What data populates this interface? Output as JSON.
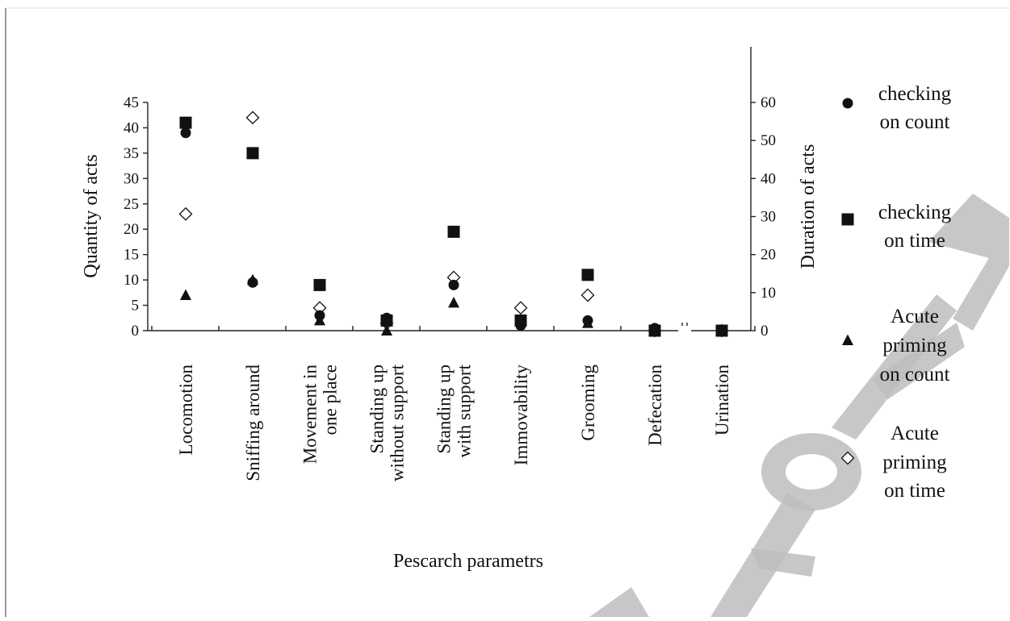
{
  "chart_data": {
    "type": "scatter",
    "xlabel": "Pescarch parametrs",
    "ylabel_left": "Quantity of acts",
    "ylabel_right": "Duration of acts",
    "ylim_left": [
      0,
      45
    ],
    "ylim_right": [
      0,
      60
    ],
    "yticks_left": [
      0,
      5,
      10,
      15,
      20,
      25,
      30,
      35,
      40,
      45
    ],
    "yticks_right": [
      0,
      10,
      20,
      30,
      40,
      50,
      60
    ],
    "categories": [
      [
        "Locomotion"
      ],
      [
        "Sniffing around"
      ],
      [
        "Movement in",
        "one place"
      ],
      [
        "Standing up",
        "without support"
      ],
      [
        "Standing up",
        "with support"
      ],
      [
        "Immovability"
      ],
      [
        "Grooming"
      ],
      [
        "Defecation"
      ],
      [
        "Urination"
      ]
    ],
    "series": [
      {
        "name": [
          "checking",
          "on count"
        ],
        "marker": "circle",
        "axis": "left",
        "values": [
          39,
          9.5,
          3,
          2.5,
          9,
          1,
          2,
          0.5,
          0
        ]
      },
      {
        "name": [
          "checking",
          "on time"
        ],
        "marker": "square",
        "axis": "left",
        "values": [
          41,
          35,
          9,
          2,
          19.5,
          2,
          11,
          0,
          0
        ]
      },
      {
        "name": [
          "Acute",
          "priming",
          "on count"
        ],
        "marker": "triangle",
        "axis": "left",
        "values": [
          7,
          10,
          2,
          0,
          5.5,
          2,
          1.5,
          0,
          0
        ]
      },
      {
        "name": [
          "Acute",
          "priming",
          "on time"
        ],
        "marker": "diamond-open",
        "axis": "left",
        "values": [
          23,
          42,
          4.5,
          1.5,
          10.5,
          4.5,
          7,
          0,
          0
        ]
      }
    ],
    "legend_position": "right",
    "grid": false,
    "watermark": "й Карпу"
  }
}
